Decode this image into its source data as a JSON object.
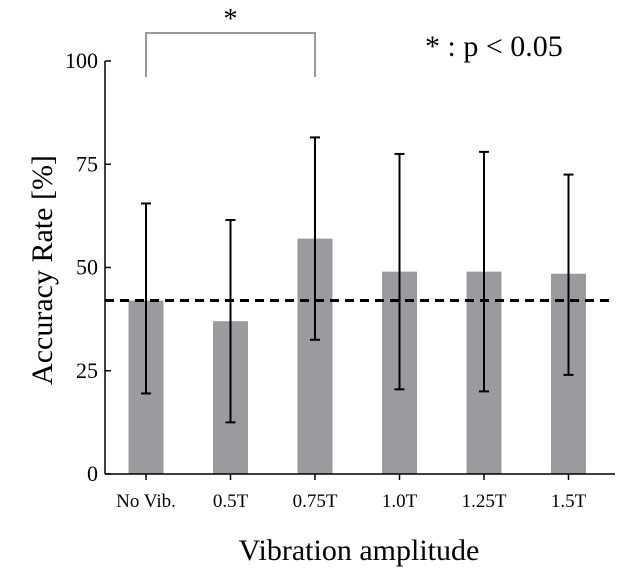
{
  "chart_data": {
    "type": "bar",
    "categories": [
      "No Vib.",
      "0.5T",
      "0.75T",
      "1.0T",
      "1.25T",
      "1.5T"
    ],
    "series": [
      {
        "values": [
          42,
          37,
          57,
          49,
          49,
          48.5
        ],
        "error_low": [
          19.5,
          12.5,
          32.5,
          20.5,
          20,
          24
        ],
        "error_high": [
          65.5,
          61.5,
          81.5,
          77.5,
          78,
          72.5
        ]
      }
    ],
    "ylim": [
      0,
      100
    ],
    "yticks": [
      0,
      25,
      50,
      75,
      100
    ],
    "xlabel": "Vibration amplitude",
    "ylabel": "Accuracy Rate [%]",
    "reference_line": 42,
    "significance": {
      "from": "No Vib.",
      "to": "0.75T",
      "marker": "*"
    },
    "legend_text": "* : p < 0.05",
    "bar_color": "#999b9e",
    "grid": false
  }
}
